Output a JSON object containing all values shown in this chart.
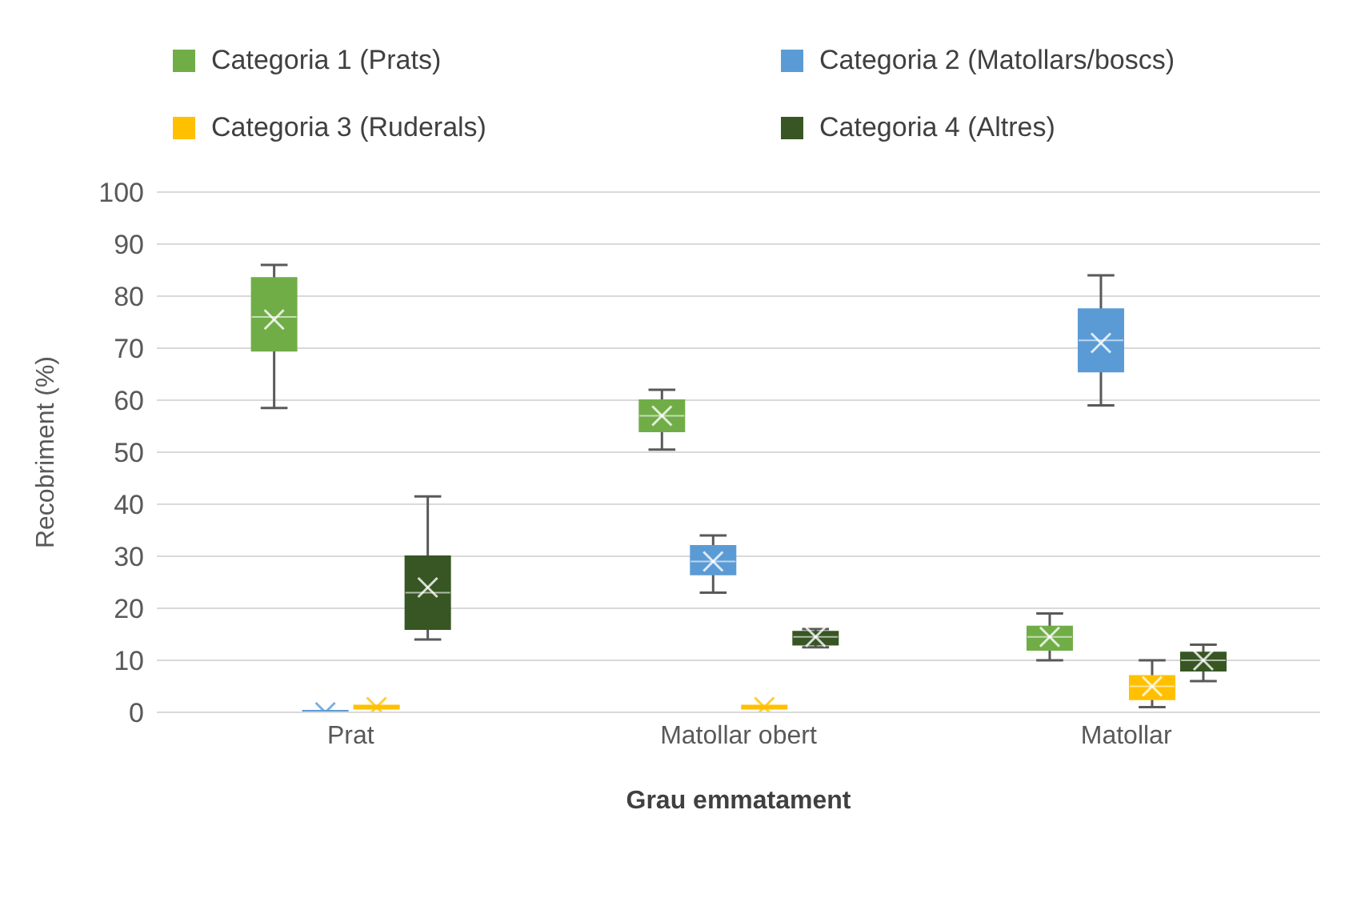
{
  "chart_data": {
    "type": "box",
    "xlabel": "Grau emmatament",
    "ylabel": "Recobriment (%)",
    "categories": [
      "Prat",
      "Matollar obert",
      "Matollar"
    ],
    "ylim": [
      0,
      100
    ],
    "yticks": [
      0,
      10,
      20,
      30,
      40,
      50,
      60,
      70,
      80,
      90,
      100
    ],
    "grid": "y",
    "legend": "top",
    "series": [
      {
        "name": "Categoria 1 (Prats)",
        "color": "#70ad47",
        "boxes": [
          {
            "low": 58.5,
            "q1": 69.5,
            "median": 76,
            "q3": 83.5,
            "high": 86,
            "mean": 75.5
          },
          {
            "low": 50.5,
            "q1": 54,
            "median": 57,
            "q3": 60,
            "high": 62,
            "mean": 57
          },
          {
            "low": 10,
            "q1": 12,
            "median": 14.5,
            "q3": 16.5,
            "high": 19,
            "mean": 14.5
          }
        ]
      },
      {
        "name": "Categoria 2 (Matollars/boscs)",
        "color": "#5b9bd5",
        "boxes": [
          {
            "low": 0,
            "q1": 0,
            "median": 0,
            "q3": 0,
            "high": 0,
            "mean": 0
          },
          {
            "low": 23,
            "q1": 26.5,
            "median": 29,
            "q3": 32,
            "high": 34,
            "mean": 29
          },
          {
            "low": 59,
            "q1": 65.5,
            "median": 71.5,
            "q3": 77.5,
            "high": 84,
            "mean": 71
          }
        ]
      },
      {
        "name": "Categoria 3 (Ruderals)",
        "color": "#ffc000",
        "boxes": [
          {
            "low": 1,
            "q1": 1,
            "median": 1,
            "q3": 1,
            "high": 1,
            "mean": 1
          },
          {
            "low": 1,
            "q1": 1,
            "median": 1,
            "q3": 1,
            "high": 1,
            "mean": 1
          },
          {
            "low": 1,
            "q1": 2.5,
            "median": 5,
            "q3": 7,
            "high": 10,
            "mean": 5
          }
        ]
      },
      {
        "name": "Categoria 4 (Altres)",
        "color": "#375623",
        "boxes": [
          {
            "low": 14,
            "q1": 16,
            "median": 23,
            "q3": 30,
            "high": 41.5,
            "mean": 24
          },
          {
            "low": 12.5,
            "q1": 13,
            "median": 14.5,
            "q3": 15.5,
            "high": 16,
            "mean": 14.5
          },
          {
            "low": 6,
            "q1": 8,
            "median": 10,
            "q3": 11.5,
            "high": 13,
            "mean": 10
          }
        ]
      }
    ]
  }
}
